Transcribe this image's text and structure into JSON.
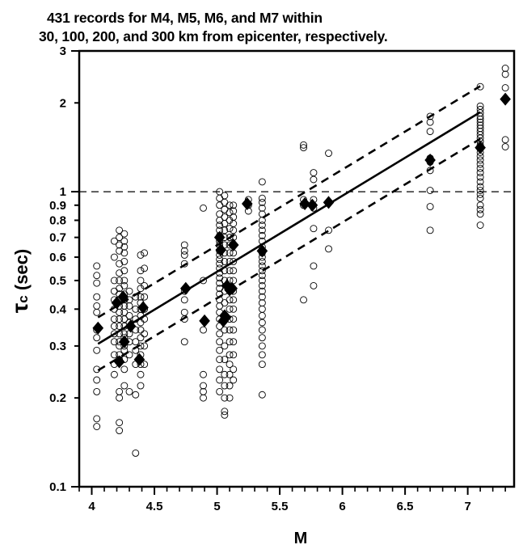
{
  "title_line1": "431 records  for M4, M5, M6, and M7 within",
  "title_line2": "30, 100, 200, and 300 km from epicenter, respectively.",
  "chart_data": {
    "type": "scatter",
    "xlabel": "M",
    "ylabel_symbol": "τ",
    "ylabel_subscript": "c",
    "ylabel_unit": " (sec)",
    "xlim": [
      3.9,
      7.37
    ],
    "ylim": [
      0.1,
      3
    ],
    "y_scale": "log",
    "x_ticks": [
      4,
      4.5,
      5,
      5.5,
      6,
      6.5,
      7
    ],
    "x_tick_labels": [
      "4",
      "4.5",
      "5",
      "5.5",
      "6",
      "6.5",
      "7"
    ],
    "y_ticks": [
      0.1,
      0.2,
      0.3,
      0.4,
      0.5,
      0.6,
      0.7,
      0.8,
      0.9,
      1,
      2,
      3
    ],
    "y_tick_labels": [
      "0.1",
      "0.2",
      "0.3",
      "0.4",
      "0.5",
      "0.6",
      "0.7",
      "0.8",
      "0.9",
      "1",
      "2",
      "3"
    ],
    "reference_line_y": 1,
    "regression": {
      "mean": {
        "x": [
          4.05,
          7.1
        ],
        "y": [
          0.305,
          1.86
        ]
      },
      "upper": {
        "x": [
          4.05,
          7.1
        ],
        "y": [
          0.375,
          2.28
        ]
      },
      "lower": {
        "x": [
          4.05,
          7.1
        ],
        "y": [
          0.248,
          1.51
        ]
      }
    },
    "mean_markers": {
      "x": [
        4.05,
        4.2,
        4.25,
        4.22,
        4.26,
        4.31,
        4.38,
        4.41,
        4.75,
        4.9,
        5.02,
        5.03,
        5.05,
        5.06,
        5.07,
        5.08,
        5.1,
        5.12,
        5.13,
        5.24,
        5.36,
        5.7,
        5.76,
        5.89,
        6.7,
        7.1,
        7.3
      ],
      "y": [
        0.345,
        0.42,
        0.44,
        0.265,
        0.31,
        0.35,
        0.27,
        0.405,
        0.47,
        0.365,
        0.7,
        0.635,
        0.365,
        0.38,
        0.375,
        0.48,
        0.465,
        0.47,
        0.66,
        0.91,
        0.63,
        0.91,
        0.9,
        0.92,
        1.28,
        1.41,
        2.06
      ]
    },
    "records": [
      {
        "x": 4.04,
        "y": [
          0.56,
          0.52,
          0.49,
          0.44,
          0.41,
          0.39,
          0.34,
          0.32,
          0.29,
          0.25,
          0.23,
          0.21,
          0.17,
          0.16
        ]
      },
      {
        "x": 4.18,
        "y": [
          0.68,
          0.6,
          0.5,
          0.46,
          0.43,
          0.4,
          0.37,
          0.35,
          0.33,
          0.31,
          0.28,
          0.26,
          0.24
        ]
      },
      {
        "x": 4.22,
        "y": [
          0.74,
          0.7,
          0.66,
          0.63,
          0.57,
          0.53,
          0.5,
          0.47,
          0.45,
          0.43,
          0.41,
          0.39,
          0.37,
          0.35,
          0.33,
          0.31,
          0.3,
          0.28,
          0.27,
          0.21,
          0.2,
          0.165,
          0.155
        ]
      },
      {
        "x": 4.26,
        "y": [
          0.72,
          0.68,
          0.65,
          0.62,
          0.58,
          0.54,
          0.5,
          0.48,
          0.45,
          0.43,
          0.41,
          0.39,
          0.37,
          0.35,
          0.33,
          0.32,
          0.3,
          0.29,
          0.27,
          0.25,
          0.22
        ]
      },
      {
        "x": 4.3,
        "y": [
          0.46,
          0.43,
          0.41,
          0.38,
          0.36,
          0.33,
          0.31,
          0.28,
          0.21
        ]
      },
      {
        "x": 4.35,
        "y": [
          0.44,
          0.4,
          0.37,
          0.34,
          0.31,
          0.29,
          0.26,
          0.205,
          0.13
        ]
      },
      {
        "x": 4.39,
        "y": [
          0.61,
          0.54,
          0.5,
          0.47,
          0.44,
          0.42,
          0.4,
          0.38,
          0.36,
          0.34,
          0.32,
          0.3,
          0.28,
          0.26,
          0.24,
          0.22
        ]
      },
      {
        "x": 4.42,
        "y": [
          0.62,
          0.55,
          0.48,
          0.44,
          0.4,
          0.37,
          0.33,
          0.3,
          0.26
        ]
      },
      {
        "x": 4.74,
        "y": [
          0.66,
          0.63,
          0.61,
          0.57,
          0.46,
          0.43,
          0.39,
          0.37,
          0.31
        ]
      },
      {
        "x": 4.89,
        "y": [
          0.88,
          0.5,
          0.34,
          0.24,
          0.22,
          0.21,
          0.2
        ]
      },
      {
        "x": 5.02,
        "y": [
          1.0,
          0.95,
          0.9,
          0.84,
          0.8,
          0.77,
          0.74,
          0.71,
          0.68,
          0.66,
          0.63,
          0.61,
          0.59,
          0.57,
          0.55,
          0.53,
          0.51,
          0.49,
          0.47,
          0.45,
          0.43,
          0.41,
          0.39,
          0.37,
          0.35,
          0.33,
          0.31,
          0.29,
          0.27,
          0.25,
          0.23,
          0.21
        ]
      },
      {
        "x": 5.06,
        "y": [
          0.97,
          0.92,
          0.87,
          0.82,
          0.78,
          0.74,
          0.7,
          0.66,
          0.62,
          0.58,
          0.54,
          0.5,
          0.46,
          0.42,
          0.38,
          0.34,
          0.3,
          0.27,
          0.24,
          0.22,
          0.2,
          0.18,
          0.175
        ]
      },
      {
        "x": 5.1,
        "y": [
          0.9,
          0.85,
          0.8,
          0.75,
          0.7,
          0.66,
          0.62,
          0.58,
          0.54,
          0.5,
          0.46,
          0.43,
          0.4,
          0.37,
          0.34,
          0.31,
          0.28,
          0.26,
          0.24,
          0.22,
          0.2
        ]
      },
      {
        "x": 5.13,
        "y": [
          0.9,
          0.86,
          0.82,
          0.78,
          0.74,
          0.7,
          0.66,
          0.62,
          0.58,
          0.54,
          0.5,
          0.46,
          0.43,
          0.4,
          0.37,
          0.34,
          0.31,
          0.28,
          0.25,
          0.23
        ]
      },
      {
        "x": 5.25,
        "y": [
          0.94,
          0.9,
          0.86
        ]
      },
      {
        "x": 5.36,
        "y": [
          1.08,
          0.95,
          0.92,
          0.88,
          0.84,
          0.8,
          0.77,
          0.74,
          0.71,
          0.68,
          0.65,
          0.62,
          0.6,
          0.58,
          0.56,
          0.54,
          0.52,
          0.5,
          0.48,
          0.46,
          0.44,
          0.42,
          0.4,
          0.38,
          0.36,
          0.34,
          0.32,
          0.3,
          0.28,
          0.26,
          0.205
        ]
      },
      {
        "x": 5.69,
        "y": [
          1.44,
          1.41,
          0.94,
          0.9,
          0.43
        ]
      },
      {
        "x": 5.77,
        "y": [
          1.16,
          1.1,
          0.94,
          0.88,
          0.75,
          0.56,
          0.48
        ]
      },
      {
        "x": 5.89,
        "y": [
          1.35,
          0.74,
          0.64
        ]
      },
      {
        "x": 6.7,
        "y": [
          1.8,
          1.72,
          1.6,
          1.3,
          1.26,
          1.18,
          1.01,
          0.89,
          0.74
        ]
      },
      {
        "x": 7.1,
        "y": [
          2.27,
          1.95,
          1.9,
          1.85,
          1.8,
          1.76,
          1.72,
          1.68,
          1.64,
          1.6,
          1.56,
          1.52,
          1.48,
          1.44,
          1.4,
          1.36,
          1.32,
          1.28,
          1.24,
          1.2,
          1.16,
          1.12,
          1.08,
          1.04,
          1.01,
          0.98,
          0.95,
          0.9,
          0.87,
          0.84,
          0.77
        ]
      },
      {
        "x": 7.3,
        "y": [
          2.62,
          2.5,
          2.25,
          1.5,
          1.42
        ]
      }
    ]
  }
}
